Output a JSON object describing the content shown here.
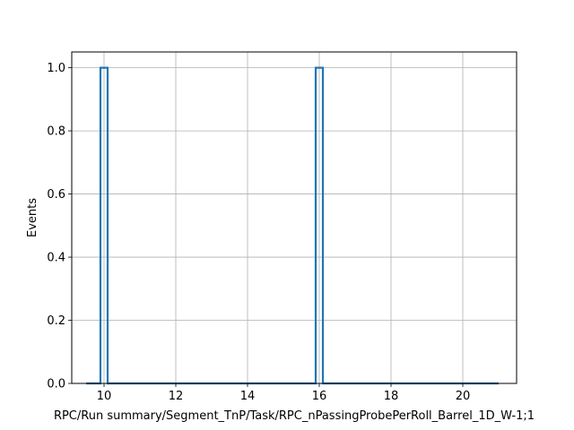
{
  "chart_data": {
    "type": "step",
    "xlabel": "RPC/Run summary/Segment_TnP/Task/RPC_nPassingProbePerRoll_Barrel_1D_W-1;1",
    "ylabel": "Events",
    "xlim": [
      9.1,
      21.5
    ],
    "ylim": [
      0,
      1.05
    ],
    "grid": true,
    "x_ticks": [
      10,
      12,
      14,
      16,
      18,
      20
    ],
    "y_ticks": [
      0.0,
      0.2,
      0.4,
      0.6,
      0.8,
      1.0
    ],
    "x_tick_labels": [
      "10",
      "12",
      "14",
      "16",
      "18",
      "20"
    ],
    "y_tick_labels": [
      "0.0",
      "0.2",
      "0.4",
      "0.6",
      "0.8",
      "1.0"
    ],
    "bin_edges_start": 9.5,
    "bin_edges_end": 21.0,
    "bin_width": 0.2,
    "nonzero_bins": [
      {
        "x_low": 9.9,
        "x_high": 10.1,
        "value": 1.0
      },
      {
        "x_low": 15.9,
        "x_high": 16.1,
        "value": 1.0
      }
    ],
    "line_color": "#1f77b4",
    "grid_color": "#b0b0b0"
  }
}
